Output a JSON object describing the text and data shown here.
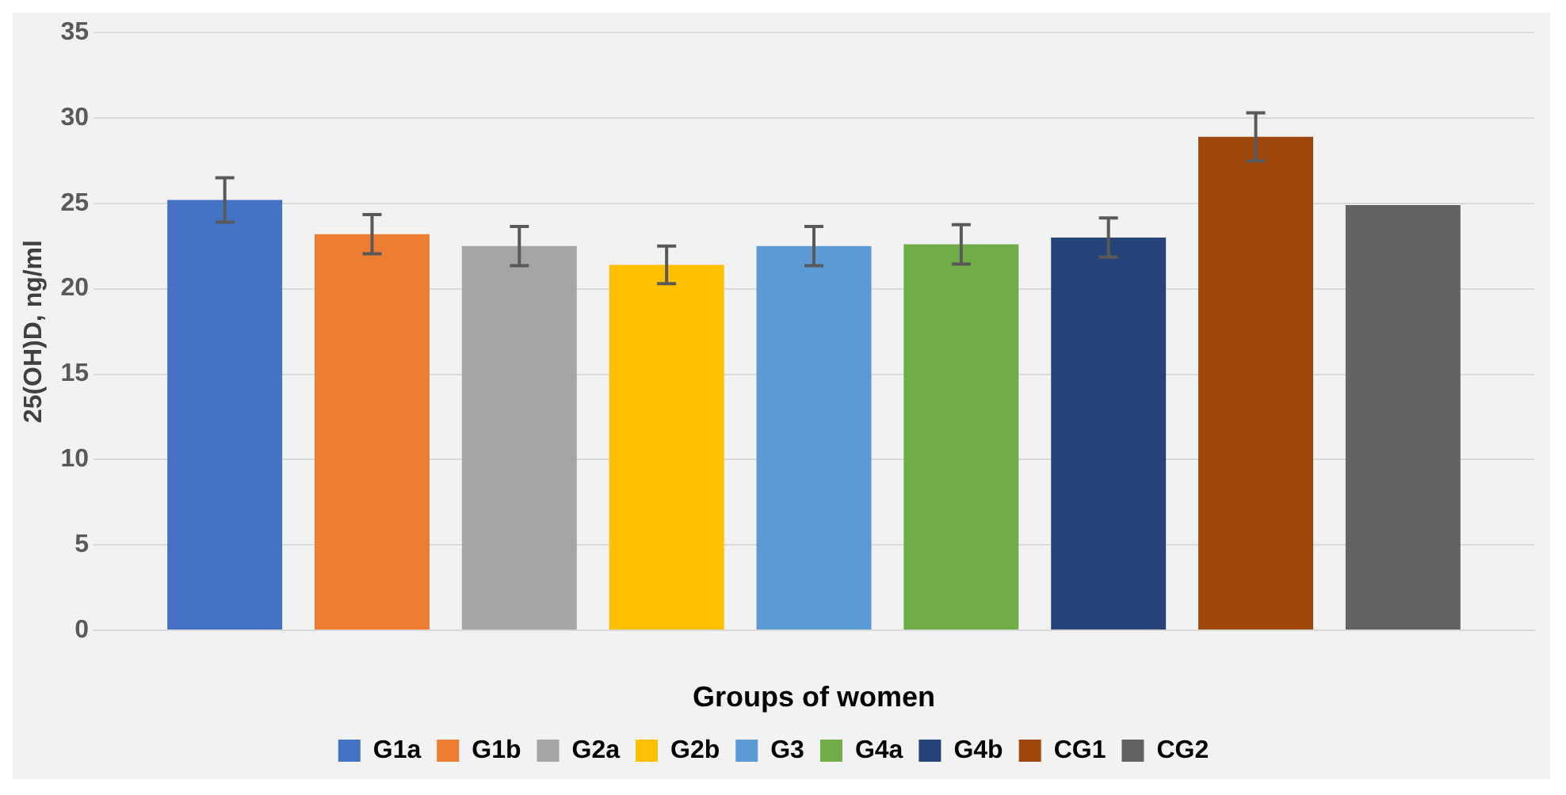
{
  "chart_data": {
    "type": "bar",
    "xlabel": "Groups of women",
    "ylabel": "25(OH)D, ng/ml",
    "categories": [
      null
    ],
    "ylim": [
      0,
      35
    ],
    "yticks": [
      0,
      5,
      10,
      15,
      20,
      25,
      30,
      35
    ],
    "grid": "y",
    "legend": "bottom",
    "series": [
      {
        "name": "G1a",
        "color": "#4472c4",
        "values": [
          25.2
        ],
        "errors": [
          1.3
        ]
      },
      {
        "name": "G1b",
        "color": "#ed7d31",
        "values": [
          23.2
        ],
        "errors": [
          1.15
        ]
      },
      {
        "name": "G2a",
        "color": "#a5a5a5",
        "values": [
          22.5
        ],
        "errors": [
          1.15
        ]
      },
      {
        "name": "G2b",
        "color": "#ffc000",
        "values": [
          21.4
        ],
        "errors": [
          1.1
        ]
      },
      {
        "name": "G3",
        "color": "#5b9bd5",
        "values": [
          22.5
        ],
        "errors": [
          1.15
        ]
      },
      {
        "name": "G4a",
        "color": "#70ad47",
        "values": [
          22.6
        ],
        "errors": [
          1.15
        ]
      },
      {
        "name": "G4b",
        "color": "#264478",
        "values": [
          23.0
        ],
        "errors": [
          1.15
        ]
      },
      {
        "name": "CG1",
        "color": "#9e480e",
        "values": [
          28.9
        ],
        "errors": [
          1.4
        ]
      },
      {
        "name": "CG2",
        "color": "#636363",
        "values": [
          24.9
        ],
        "errors": [
          null
        ]
      }
    ]
  }
}
